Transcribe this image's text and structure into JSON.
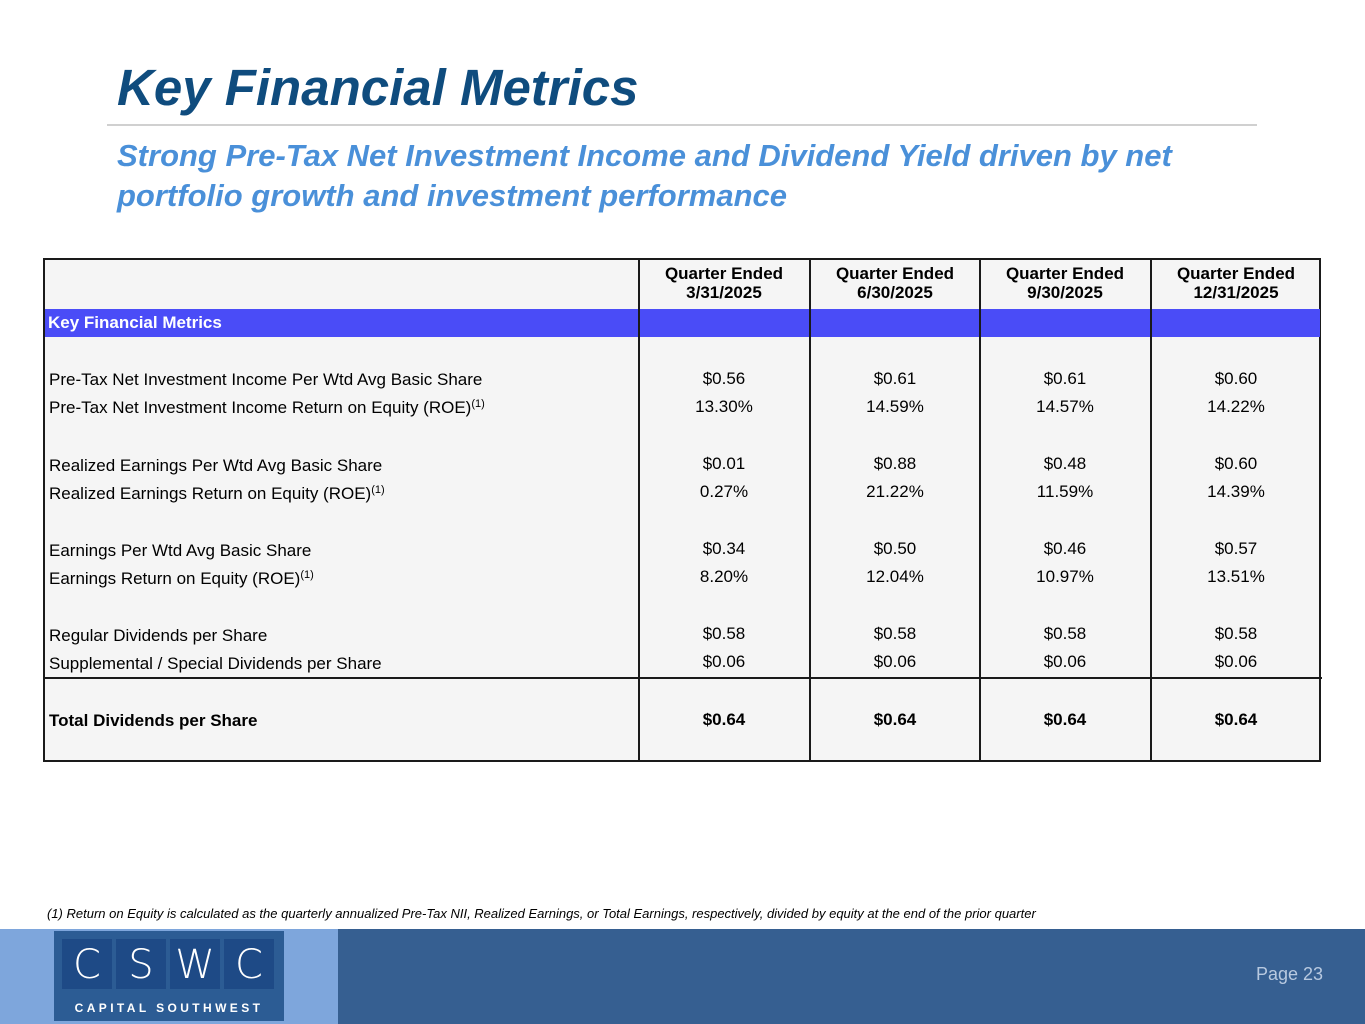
{
  "title": "Key Financial Metrics",
  "subtitle": "Strong Pre-Tax Net Investment Income and Dividend Yield driven by net portfolio growth and investment performance",
  "table": {
    "columns": [
      {
        "line1": "Quarter Ended",
        "line2": "3/31/2025"
      },
      {
        "line1": "Quarter Ended",
        "line2": "6/30/2025"
      },
      {
        "line1": "Quarter Ended",
        "line2": "9/30/2025"
      },
      {
        "line1": "Quarter Ended",
        "line2": "12/31/2025"
      }
    ],
    "section_label": "Key Financial Metrics",
    "rows": [
      {
        "label": "Pre-Tax Net Investment Income Per Wtd Avg Basic Share",
        "sup": "",
        "values": [
          "$0.56",
          "$0.61",
          "$0.61",
          "$0.60"
        ]
      },
      {
        "label": "Pre-Tax Net Investment Income Return on Equity (ROE)",
        "sup": "(1)",
        "values": [
          "13.30%",
          "14.59%",
          "14.57%",
          "14.22%"
        ]
      },
      {
        "label": "Realized Earnings Per Wtd Avg Basic Share",
        "sup": "",
        "values": [
          "$0.01",
          "$0.88",
          "$0.48",
          "$0.60"
        ]
      },
      {
        "label": "Realized Earnings Return on Equity (ROE)",
        "sup": "(1)",
        "values": [
          "0.27%",
          "21.22%",
          "11.59%",
          "14.39%"
        ]
      },
      {
        "label": "Earnings Per Wtd Avg Basic Share",
        "sup": "",
        "values": [
          "$0.34",
          "$0.50",
          "$0.46",
          "$0.57"
        ]
      },
      {
        "label": "Earnings Return on Equity (ROE)",
        "sup": "(1)",
        "values": [
          "8.20%",
          "12.04%",
          "10.97%",
          "13.51%"
        ]
      },
      {
        "label": "Regular Dividends per Share",
        "sup": "",
        "values": [
          "$0.58",
          "$0.58",
          "$0.58",
          "$0.58"
        ]
      },
      {
        "label": "Supplemental / Special Dividends per Share",
        "sup": "",
        "values": [
          "$0.06",
          "$0.06",
          "$0.06",
          "$0.06"
        ]
      }
    ],
    "total": {
      "label": "Total Dividends per Share",
      "values": [
        "$0.64",
        "$0.64",
        "$0.64",
        "$0.64"
      ]
    }
  },
  "footnote": "(1)  Return on Equity is calculated as the quarterly annualized Pre-Tax NII, Realized Earnings, or Total Earnings, respectively, divided by equity at the end of the prior quarter",
  "logo": {
    "letters": [
      "C",
      "S",
      "W",
      "C"
    ],
    "tagline": "CAPITAL SOUTHWEST"
  },
  "page_label": "Page 23",
  "colors": {
    "title": "#0f4c7e",
    "subtitle": "#4a90d9",
    "band": "#4a4cf7",
    "footer": "#365f91",
    "footer_light": "#7ea6dc"
  }
}
